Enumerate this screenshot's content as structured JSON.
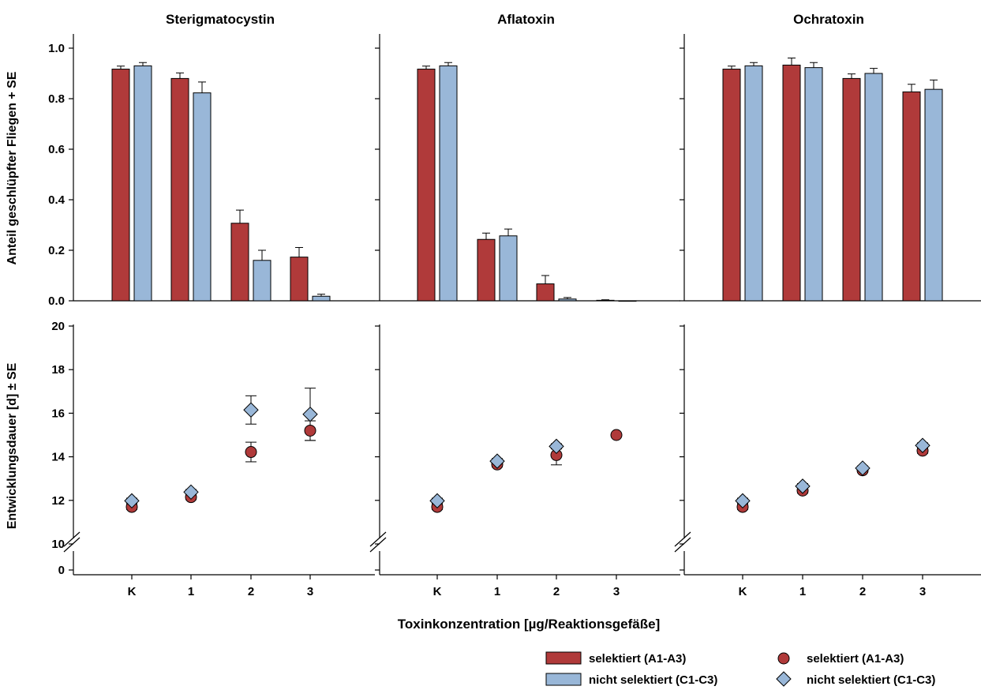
{
  "figure": {
    "xlabel": "Toxinkonzentration [µg/Reaktionsgefäße]",
    "ylabel_top": "Anteil geschlüpfter Fliegen + SE",
    "ylabel_bottom": "Entwicklungsdauer [d] ± SE",
    "colors": {
      "selected": "#b03a3a",
      "unselected": "#99b7d8"
    }
  },
  "legend": {
    "bar_selected": "selektiert (A1-A3)",
    "bar_unselected": "nicht selektiert (C1-C3)",
    "point_selected": "selektiert (A1-A3)",
    "point_unselected": "nicht selektiert (C1-C3)"
  },
  "chart_data": [
    {
      "type": "bar",
      "title": "Sterigmatocystin",
      "categories": [
        "K",
        "1",
        "2",
        "3"
      ],
      "ylim": [
        0,
        1.05
      ],
      "yticks": [
        "0.0",
        "0.2",
        "0.4",
        "0.6",
        "0.8",
        "1.0"
      ],
      "series": [
        {
          "name": "selektiert (A1-A3)",
          "values": [
            0.917,
            0.88,
            0.307,
            0.173
          ],
          "se": [
            0.012,
            0.022,
            0.052,
            0.038
          ]
        },
        {
          "name": "nicht selektiert (C1-C3)",
          "values": [
            0.93,
            0.823,
            0.16,
            0.018
          ],
          "se": [
            0.013,
            0.043,
            0.04,
            0.008
          ]
        }
      ]
    },
    {
      "type": "bar",
      "title": "Aflatoxin",
      "categories": [
        "K",
        "1",
        "2",
        "3"
      ],
      "ylim": [
        0,
        1.05
      ],
      "yticks": [
        "0.0",
        "0.2",
        "0.4",
        "0.6",
        "0.8",
        "1.0"
      ],
      "series": [
        {
          "name": "selektiert (A1-A3)",
          "values": [
            0.917,
            0.243,
            0.067,
            0.002
          ],
          "se": [
            0.012,
            0.025,
            0.033,
            0.002
          ]
        },
        {
          "name": "nicht selektiert (C1-C3)",
          "values": [
            0.93,
            0.257,
            0.007,
            0.0
          ],
          "se": [
            0.013,
            0.027,
            0.006,
            0.0
          ]
        }
      ]
    },
    {
      "type": "bar",
      "title": "Ochratoxin",
      "categories": [
        "K",
        "1",
        "2",
        "3"
      ],
      "ylim": [
        0,
        1.05
      ],
      "yticks": [
        "0.0",
        "0.2",
        "0.4",
        "0.6",
        "0.8",
        "1.0"
      ],
      "series": [
        {
          "name": "selektiert (A1-A3)",
          "values": [
            0.917,
            0.933,
            0.88,
            0.827
          ],
          "se": [
            0.012,
            0.028,
            0.018,
            0.03
          ]
        },
        {
          "name": "nicht selektiert (C1-C3)",
          "values": [
            0.93,
            0.923,
            0.9,
            0.837
          ],
          "se": [
            0.013,
            0.02,
            0.02,
            0.037
          ]
        }
      ]
    },
    {
      "type": "scatter",
      "categories": [
        "K",
        "1",
        "2",
        "3"
      ],
      "ylim": [
        10,
        20
      ],
      "axis_break": true,
      "yticks": [
        "0",
        "10",
        "12",
        "14",
        "16",
        "18",
        "20"
      ],
      "series": [
        {
          "name": "selektiert (A1-A3)",
          "values": [
            11.7,
            12.15,
            14.22,
            15.2
          ],
          "se": [
            0.12,
            0.12,
            0.45,
            0.45
          ]
        },
        {
          "name": "nicht selektiert (C1-C3)",
          "values": [
            11.98,
            12.38,
            16.15,
            15.95
          ],
          "se": [
            0.12,
            0.12,
            0.65,
            1.2
          ]
        }
      ]
    },
    {
      "type": "scatter",
      "categories": [
        "K",
        "1",
        "2",
        "3"
      ],
      "ylim": [
        10,
        20
      ],
      "axis_break": true,
      "yticks": [
        "0",
        "10",
        "12",
        "14",
        "16",
        "18",
        "20"
      ],
      "series": [
        {
          "name": "selektiert (A1-A3)",
          "values": [
            11.7,
            13.65,
            14.08,
            15.0
          ],
          "se": [
            0.12,
            0.12,
            0.45,
            0.0
          ]
        },
        {
          "name": "nicht selektiert (C1-C3)",
          "values": [
            11.98,
            13.8,
            14.48,
            null
          ],
          "se": [
            0.12,
            0.12,
            0.12,
            0.0
          ]
        }
      ]
    },
    {
      "type": "scatter",
      "categories": [
        "K",
        "1",
        "2",
        "3"
      ],
      "ylim": [
        10,
        20
      ],
      "axis_break": true,
      "yticks": [
        "0",
        "10",
        "12",
        "14",
        "16",
        "18",
        "20"
      ],
      "series": [
        {
          "name": "selektiert (A1-A3)",
          "values": [
            11.7,
            12.45,
            13.38,
            14.28
          ],
          "se": [
            0.12,
            0.12,
            0.1,
            0.12
          ]
        },
        {
          "name": "nicht selektiert (C1-C3)",
          "values": [
            11.98,
            12.65,
            13.48,
            14.52
          ],
          "se": [
            0.12,
            0.12,
            0.1,
            0.12
          ]
        }
      ]
    }
  ]
}
